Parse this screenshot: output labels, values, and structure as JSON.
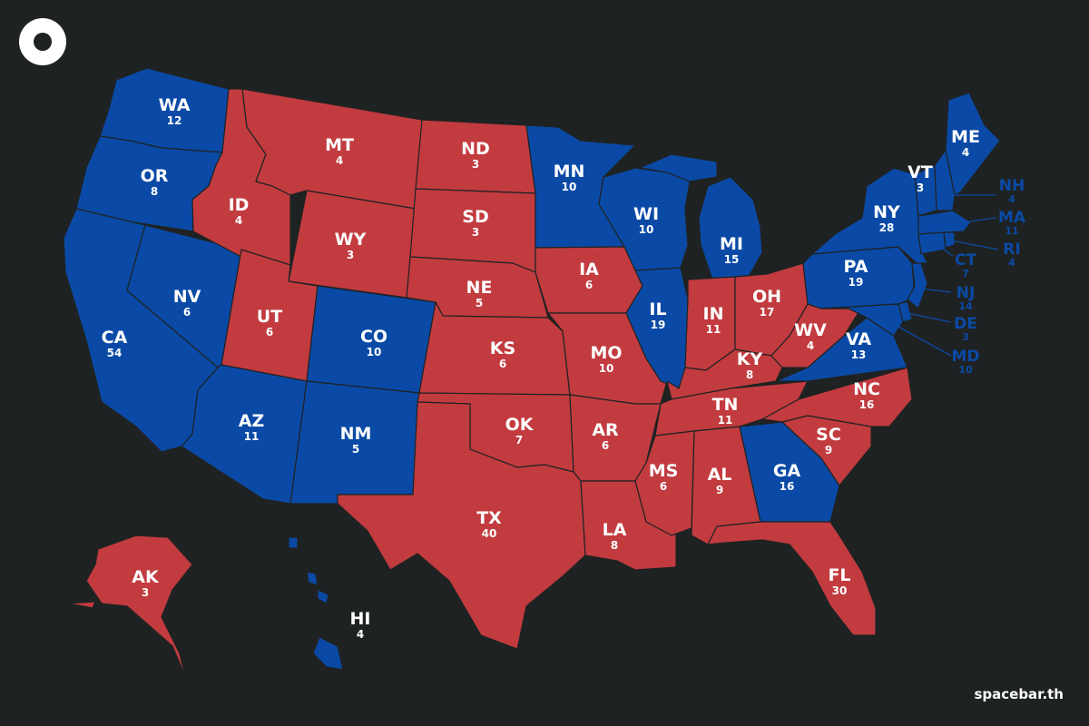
{
  "brand": {
    "text": "spacebar.th"
  },
  "colors": {
    "dem": "#0a4aa6",
    "rep": "#c23b3f",
    "background": "#1f2222",
    "label": "#ffffff",
    "outline": "#1f2222"
  },
  "states": [
    {
      "abbr": "WA",
      "votes": "12",
      "party": "dem"
    },
    {
      "abbr": "OR",
      "votes": "8",
      "party": "dem"
    },
    {
      "abbr": "CA",
      "votes": "54",
      "party": "dem"
    },
    {
      "abbr": "NV",
      "votes": "6",
      "party": "dem"
    },
    {
      "abbr": "ID",
      "votes": "4",
      "party": "rep"
    },
    {
      "abbr": "MT",
      "votes": "4",
      "party": "rep"
    },
    {
      "abbr": "WY",
      "votes": "3",
      "party": "rep"
    },
    {
      "abbr": "UT",
      "votes": "6",
      "party": "rep"
    },
    {
      "abbr": "CO",
      "votes": "10",
      "party": "dem"
    },
    {
      "abbr": "AZ",
      "votes": "11",
      "party": "dem"
    },
    {
      "abbr": "NM",
      "votes": "5",
      "party": "dem"
    },
    {
      "abbr": "ND",
      "votes": "3",
      "party": "rep"
    },
    {
      "abbr": "SD",
      "votes": "3",
      "party": "rep"
    },
    {
      "abbr": "NE",
      "votes": "5",
      "party": "rep"
    },
    {
      "abbr": "KS",
      "votes": "6",
      "party": "rep"
    },
    {
      "abbr": "OK",
      "votes": "7",
      "party": "rep"
    },
    {
      "abbr": "TX",
      "votes": "40",
      "party": "rep"
    },
    {
      "abbr": "MN",
      "votes": "10",
      "party": "dem"
    },
    {
      "abbr": "IA",
      "votes": "6",
      "party": "rep"
    },
    {
      "abbr": "MO",
      "votes": "10",
      "party": "rep"
    },
    {
      "abbr": "AR",
      "votes": "6",
      "party": "rep"
    },
    {
      "abbr": "LA",
      "votes": "8",
      "party": "rep"
    },
    {
      "abbr": "WI",
      "votes": "10",
      "party": "dem"
    },
    {
      "abbr": "IL",
      "votes": "19",
      "party": "dem"
    },
    {
      "abbr": "MI",
      "votes": "15",
      "party": "dem"
    },
    {
      "abbr": "IN",
      "votes": "11",
      "party": "rep"
    },
    {
      "abbr": "OH",
      "votes": "17",
      "party": "rep"
    },
    {
      "abbr": "KY",
      "votes": "8",
      "party": "rep"
    },
    {
      "abbr": "TN",
      "votes": "11",
      "party": "rep"
    },
    {
      "abbr": "MS",
      "votes": "6",
      "party": "rep"
    },
    {
      "abbr": "AL",
      "votes": "9",
      "party": "rep"
    },
    {
      "abbr": "GA",
      "votes": "16",
      "party": "dem"
    },
    {
      "abbr": "FL",
      "votes": "30",
      "party": "rep"
    },
    {
      "abbr": "SC",
      "votes": "9",
      "party": "rep"
    },
    {
      "abbr": "NC",
      "votes": "16",
      "party": "rep"
    },
    {
      "abbr": "VA",
      "votes": "13",
      "party": "dem"
    },
    {
      "abbr": "WV",
      "votes": "4",
      "party": "rep"
    },
    {
      "abbr": "PA",
      "votes": "19",
      "party": "dem"
    },
    {
      "abbr": "NY",
      "votes": "28",
      "party": "dem"
    },
    {
      "abbr": "VT",
      "votes": "3",
      "party": "dem"
    },
    {
      "abbr": "ME",
      "votes": "4",
      "party": "dem"
    },
    {
      "abbr": "AK",
      "votes": "3",
      "party": "rep"
    },
    {
      "abbr": "HI",
      "votes": "4",
      "party": "dem"
    }
  ],
  "callouts": [
    {
      "abbr": "NH",
      "votes": "4",
      "party": "dem"
    },
    {
      "abbr": "MA",
      "votes": "11",
      "party": "dem"
    },
    {
      "abbr": "RI",
      "votes": "4",
      "party": "dem"
    },
    {
      "abbr": "CT",
      "votes": "7",
      "party": "dem"
    },
    {
      "abbr": "NJ",
      "votes": "14",
      "party": "dem"
    },
    {
      "abbr": "DE",
      "votes": "3",
      "party": "dem"
    },
    {
      "abbr": "MD",
      "votes": "10",
      "party": "dem"
    }
  ]
}
